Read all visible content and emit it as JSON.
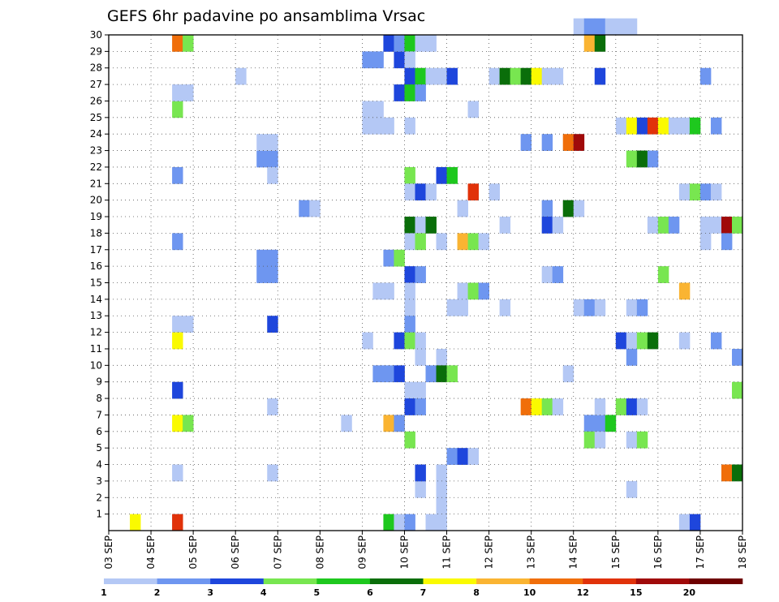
{
  "chart_data": {
    "type": "heatmap",
    "title": "GEFS 6hr padavine po ansamblima Vrsac",
    "x_tick_labels": [
      "03 SEP",
      "04 SEP",
      "05 SEP",
      "06 SEP",
      "07 SEP",
      "08 SEP",
      "09 SEP",
      "10 SEP",
      "11 SEP",
      "12 SEP",
      "13 SEP",
      "14 SEP",
      "15 SEP",
      "16 SEP",
      "17 SEP",
      "18 SEP"
    ],
    "y_tick_labels": [
      "1",
      "2",
      "3",
      "4",
      "5",
      "6",
      "7",
      "8",
      "9",
      "10",
      "11",
      "12",
      "13",
      "14",
      "15",
      "16",
      "17",
      "18",
      "19",
      "20",
      "21",
      "22",
      "23",
      "24",
      "25",
      "26",
      "27",
      "28",
      "29",
      "30"
    ],
    "ylim": [
      0,
      30
    ],
    "grid": true,
    "colorbar": {
      "labels": [
        "1",
        "2",
        "3",
        "4",
        "5",
        "6",
        "7",
        "8",
        "10",
        "12",
        "15",
        "20"
      ],
      "colors": [
        "#b4c8f5",
        "#6e96f0",
        "#1e46dc",
        "#78e650",
        "#1ec81e",
        "#0a6e0a",
        "#fafa00",
        "#fab432",
        "#f06e0a",
        "#e1320a",
        "#a00a0a",
        "#6e0000"
      ]
    },
    "cells": [
      {
        "day": 3.5,
        "member": 0,
        "level": 7
      },
      {
        "day": 4.5,
        "member": 0,
        "level": 1
      },
      {
        "day": 4.5,
        "member": 0,
        "level": 10
      },
      {
        "day": 9.5,
        "member": 0,
        "level": 5
      },
      {
        "day": 9.75,
        "member": 0,
        "level": 1
      },
      {
        "day": 10.0,
        "member": 0,
        "level": 2
      },
      {
        "day": 10.5,
        "member": 0,
        "level": 1
      },
      {
        "day": 10.75,
        "member": 0,
        "level": 1
      },
      {
        "day": 16.5,
        "member": 0,
        "level": 1
      },
      {
        "day": 16.75,
        "member": 0,
        "level": 3
      },
      {
        "day": 10.25,
        "member": 2,
        "level": 1
      },
      {
        "day": 10.25,
        "member": 3,
        "level": 3
      },
      {
        "day": 10.75,
        "member": 1,
        "level": 1
      },
      {
        "day": 10.75,
        "member": 2,
        "level": 1
      },
      {
        "day": 10.75,
        "member": 3,
        "level": 1
      },
      {
        "day": 4.5,
        "member": 3,
        "level": 1
      },
      {
        "day": 4.5,
        "member": 12,
        "level": 1
      },
      {
        "day": 4.75,
        "member": 12,
        "level": 1
      },
      {
        "day": 4.5,
        "member": 6,
        "level": 7
      },
      {
        "day": 4.75,
        "member": 6,
        "level": 4
      },
      {
        "day": 4.5,
        "member": 8,
        "level": 3
      },
      {
        "day": 4.5,
        "member": 11,
        "level": 7
      },
      {
        "day": 4.5,
        "member": 17,
        "level": 2
      },
      {
        "day": 4.5,
        "member": 21,
        "level": 2
      },
      {
        "day": 4.5,
        "member": 25,
        "level": 4
      },
      {
        "day": 4.5,
        "member": 26,
        "level": 1
      },
      {
        "day": 4.75,
        "member": 26,
        "level": 1
      },
      {
        "day": 4.5,
        "member": 29,
        "level": 9
      },
      {
        "day": 4.75,
        "member": 29,
        "level": 4
      },
      {
        "day": 6.0,
        "member": 27,
        "level": 1
      },
      {
        "day": 6.5,
        "member": 16,
        "level": 2
      },
      {
        "day": 6.75,
        "member": 16,
        "level": 2
      },
      {
        "day": 6.5,
        "member": 15,
        "level": 2
      },
      {
        "day": 6.75,
        "member": 15,
        "level": 2
      },
      {
        "day": 6.5,
        "member": 22,
        "level": 2
      },
      {
        "day": 6.75,
        "member": 22,
        "level": 2
      },
      {
        "day": 6.5,
        "member": 23,
        "level": 1
      },
      {
        "day": 6.75,
        "member": 23,
        "level": 1
      },
      {
        "day": 6.75,
        "member": 21,
        "level": 1
      },
      {
        "day": 6.75,
        "member": 12,
        "level": 3
      },
      {
        "day": 6.75,
        "member": 7,
        "level": 1
      },
      {
        "day": 6.75,
        "member": 3,
        "level": 1
      },
      {
        "day": 7.5,
        "member": 19,
        "level": 2
      },
      {
        "day": 7.75,
        "member": 19,
        "level": 1
      },
      {
        "day": 8.5,
        "member": 6,
        "level": 1
      },
      {
        "day": 9.0,
        "member": 28,
        "level": 2
      },
      {
        "day": 9.25,
        "member": 28,
        "level": 2
      },
      {
        "day": 9.0,
        "member": 25,
        "level": 1
      },
      {
        "day": 9.25,
        "member": 25,
        "level": 1
      },
      {
        "day": 9.0,
        "member": 24,
        "level": 1
      },
      {
        "day": 9.25,
        "member": 24,
        "level": 1
      },
      {
        "day": 9.5,
        "member": 24,
        "level": 1
      },
      {
        "day": 9.0,
        "member": 11,
        "level": 1
      },
      {
        "day": 9.25,
        "member": 9,
        "level": 2
      },
      {
        "day": 9.5,
        "member": 9,
        "level": 2
      },
      {
        "day": 9.75,
        "member": 9,
        "level": 3
      },
      {
        "day": 9.25,
        "member": 14,
        "level": 1
      },
      {
        "day": 9.5,
        "member": 14,
        "level": 1
      },
      {
        "day": 9.5,
        "member": 29,
        "level": 3
      },
      {
        "day": 9.75,
        "member": 28,
        "level": 3
      },
      {
        "day": 9.75,
        "member": 6,
        "level": 8
      },
      {
        "day": 9.75,
        "member": 29,
        "level": 2
      },
      {
        "day": 10.0,
        "member": 29,
        "level": 5
      },
      {
        "day": 10.25,
        "member": 29,
        "level": 1
      },
      {
        "day": 10.5,
        "member": 29,
        "level": 1
      },
      {
        "day": 10.0,
        "member": 28,
        "level": 1
      },
      {
        "day": 10.0,
        "member": 27,
        "level": 3
      },
      {
        "day": 10.25,
        "member": 27,
        "level": 5
      },
      {
        "day": 10.5,
        "member": 27,
        "level": 1
      },
      {
        "day": 10.75,
        "member": 27,
        "level": 1
      },
      {
        "day": 11.0,
        "member": 27,
        "level": 3
      },
      {
        "day": 9.75,
        "member": 26,
        "level": 3
      },
      {
        "day": 10.0,
        "member": 26,
        "level": 5
      },
      {
        "day": 10.25,
        "member": 26,
        "level": 2
      },
      {
        "day": 10.0,
        "member": 24,
        "level": 1
      },
      {
        "day": 10.0,
        "member": 21,
        "level": 4
      },
      {
        "day": 10.75,
        "member": 21,
        "level": 3
      },
      {
        "day": 11.0,
        "member": 21,
        "level": 5
      },
      {
        "day": 10.0,
        "member": 20,
        "level": 1
      },
      {
        "day": 10.25,
        "member": 20,
        "level": 3
      },
      {
        "day": 10.5,
        "member": 20,
        "level": 1
      },
      {
        "day": 10.0,
        "member": 18,
        "level": 6
      },
      {
        "day": 10.25,
        "member": 18,
        "level": 1
      },
      {
        "day": 10.5,
        "member": 18,
        "level": 6
      },
      {
        "day": 10.0,
        "member": 17,
        "level": 1
      },
      {
        "day": 10.25,
        "member": 17,
        "level": 4
      },
      {
        "day": 10.75,
        "member": 17,
        "level": 1
      },
      {
        "day": 9.5,
        "member": 16,
        "level": 2
      },
      {
        "day": 9.75,
        "member": 16,
        "level": 4
      },
      {
        "day": 10.0,
        "member": 15,
        "level": 3
      },
      {
        "day": 10.25,
        "member": 15,
        "level": 2
      },
      {
        "day": 10.0,
        "member": 14,
        "level": 1
      },
      {
        "day": 10.0,
        "member": 13,
        "level": 1
      },
      {
        "day": 10.0,
        "member": 12,
        "level": 2
      },
      {
        "day": 9.75,
        "member": 11,
        "level": 3
      },
      {
        "day": 10.0,
        "member": 11,
        "level": 4
      },
      {
        "day": 10.25,
        "member": 11,
        "level": 1
      },
      {
        "day": 10.25,
        "member": 10,
        "level": 1
      },
      {
        "day": 10.75,
        "member": 10,
        "level": 1
      },
      {
        "day": 10.5,
        "member": 9,
        "level": 2
      },
      {
        "day": 10.75,
        "member": 9,
        "level": 6
      },
      {
        "day": 11.0,
        "member": 9,
        "level": 4
      },
      {
        "day": 10.0,
        "member": 8,
        "level": 1
      },
      {
        "day": 10.25,
        "member": 8,
        "level": 1
      },
      {
        "day": 10.0,
        "member": 7,
        "level": 3
      },
      {
        "day": 10.25,
        "member": 7,
        "level": 2
      },
      {
        "day": 9.5,
        "member": 6,
        "level": 8
      },
      {
        "day": 9.75,
        "member": 6,
        "level": 2
      },
      {
        "day": 10.0,
        "member": 5,
        "level": 4
      },
      {
        "day": 11.0,
        "member": 4,
        "level": 2
      },
      {
        "day": 11.25,
        "member": 4,
        "level": 3
      },
      {
        "day": 11.5,
        "member": 4,
        "level": 1
      },
      {
        "day": 11.0,
        "member": 13,
        "level": 1
      },
      {
        "day": 11.25,
        "member": 13,
        "level": 1
      },
      {
        "day": 11.25,
        "member": 14,
        "level": 1
      },
      {
        "day": 11.5,
        "member": 14,
        "level": 4
      },
      {
        "day": 11.75,
        "member": 14,
        "level": 2
      },
      {
        "day": 11.25,
        "member": 17,
        "level": 8
      },
      {
        "day": 11.5,
        "member": 17,
        "level": 4
      },
      {
        "day": 11.75,
        "member": 17,
        "level": 1
      },
      {
        "day": 11.25,
        "member": 19,
        "level": 1
      },
      {
        "day": 11.5,
        "member": 20,
        "level": 10
      },
      {
        "day": 11.5,
        "member": 25,
        "level": 1
      },
      {
        "day": 12.0,
        "member": 20,
        "level": 1
      },
      {
        "day": 12.0,
        "member": 27,
        "level": 1
      },
      {
        "day": 12.25,
        "member": 27,
        "level": 6
      },
      {
        "day": 12.5,
        "member": 27,
        "level": 4
      },
      {
        "day": 12.75,
        "member": 27,
        "level": 6
      },
      {
        "day": 13.0,
        "member": 27,
        "level": 7
      },
      {
        "day": 13.25,
        "member": 27,
        "level": 1
      },
      {
        "day": 13.5,
        "member": 27,
        "level": 1
      },
      {
        "day": 12.25,
        "member": 18,
        "level": 1
      },
      {
        "day": 12.25,
        "member": 13,
        "level": 1
      },
      {
        "day": 12.75,
        "member": 23,
        "level": 2
      },
      {
        "day": 13.25,
        "member": 23,
        "level": 2
      },
      {
        "day": 12.75,
        "member": 7,
        "level": 9
      },
      {
        "day": 13.0,
        "member": 7,
        "level": 7
      },
      {
        "day": 13.25,
        "member": 7,
        "level": 4
      },
      {
        "day": 13.5,
        "member": 7,
        "level": 1
      },
      {
        "day": 13.25,
        "member": 19,
        "level": 2
      },
      {
        "day": 13.25,
        "member": 18,
        "level": 3
      },
      {
        "day": 13.5,
        "member": 18,
        "level": 1
      },
      {
        "day": 13.25,
        "member": 15,
        "level": 1
      },
      {
        "day": 13.5,
        "member": 15,
        "level": 2
      },
      {
        "day": 13.75,
        "member": 9,
        "level": 1
      },
      {
        "day": 13.75,
        "member": 23,
        "level": 9
      },
      {
        "day": 14.0,
        "member": 23,
        "level": 11
      },
      {
        "day": 13.75,
        "member": 19,
        "level": 6
      },
      {
        "day": 14.0,
        "member": 19,
        "level": 1
      },
      {
        "day": 14.0,
        "member": 30,
        "level": 1
      },
      {
        "day": 14.25,
        "member": 30,
        "level": 2
      },
      {
        "day": 14.25,
        "member": 29,
        "level": 8
      },
      {
        "day": 14.5,
        "member": 29,
        "level": 6
      },
      {
        "day": 14.5,
        "member": 30,
        "level": 2
      },
      {
        "day": 14.75,
        "member": 30,
        "level": 1
      },
      {
        "day": 15.0,
        "member": 30,
        "level": 1
      },
      {
        "day": 15.25,
        "member": 30,
        "level": 1
      },
      {
        "day": 14.5,
        "member": 27,
        "level": 3
      },
      {
        "day": 14.0,
        "member": 13,
        "level": 1
      },
      {
        "day": 14.25,
        "member": 13,
        "level": 2
      },
      {
        "day": 14.5,
        "member": 13,
        "level": 1
      },
      {
        "day": 14.25,
        "member": 6,
        "level": 2
      },
      {
        "day": 14.5,
        "member": 6,
        "level": 2
      },
      {
        "day": 14.75,
        "member": 6,
        "level": 5
      },
      {
        "day": 14.25,
        "member": 5,
        "level": 4
      },
      {
        "day": 14.5,
        "member": 5,
        "level": 1
      },
      {
        "day": 14.5,
        "member": 7,
        "level": 1
      },
      {
        "day": 15.0,
        "member": 24,
        "level": 1
      },
      {
        "day": 15.25,
        "member": 24,
        "level": 7
      },
      {
        "day": 15.5,
        "member": 24,
        "level": 3
      },
      {
        "day": 15.75,
        "member": 24,
        "level": 10
      },
      {
        "day": 16.0,
        "member": 24,
        "level": 7
      },
      {
        "day": 16.25,
        "member": 24,
        "level": 1
      },
      {
        "day": 15.0,
        "member": 7,
        "level": 4
      },
      {
        "day": 15.25,
        "member": 7,
        "level": 3
      },
      {
        "day": 15.5,
        "member": 7,
        "level": 1
      },
      {
        "day": 15.0,
        "member": 11,
        "level": 3
      },
      {
        "day": 15.25,
        "member": 11,
        "level": 1
      },
      {
        "day": 15.5,
        "member": 11,
        "level": 4
      },
      {
        "day": 15.75,
        "member": 11,
        "level": 6
      },
      {
        "day": 15.25,
        "member": 10,
        "level": 2
      },
      {
        "day": 15.25,
        "member": 22,
        "level": 4
      },
      {
        "day": 15.5,
        "member": 22,
        "level": 6
      },
      {
        "day": 15.75,
        "member": 22,
        "level": 2
      },
      {
        "day": 15.25,
        "member": 13,
        "level": 1
      },
      {
        "day": 15.5,
        "member": 13,
        "level": 2
      },
      {
        "day": 15.25,
        "member": 5,
        "level": 1
      },
      {
        "day": 15.5,
        "member": 5,
        "level": 4
      },
      {
        "day": 15.25,
        "member": 2,
        "level": 1
      },
      {
        "day": 15.75,
        "member": 18,
        "level": 1
      },
      {
        "day": 16.0,
        "member": 18,
        "level": 4
      },
      {
        "day": 16.25,
        "member": 18,
        "level": 2
      },
      {
        "day": 16.0,
        "member": 15,
        "level": 4
      },
      {
        "day": 16.5,
        "member": 11,
        "level": 1
      },
      {
        "day": 16.5,
        "member": 24,
        "level": 1
      },
      {
        "day": 16.75,
        "member": 24,
        "level": 5
      },
      {
        "day": 17.25,
        "member": 24,
        "level": 2
      },
      {
        "day": 16.5,
        "member": 14,
        "level": 8
      },
      {
        "day": 16.5,
        "member": 20,
        "level": 1
      },
      {
        "day": 16.75,
        "member": 20,
        "level": 4
      },
      {
        "day": 17.0,
        "member": 20,
        "level": 2
      },
      {
        "day": 17.25,
        "member": 20,
        "level": 1
      },
      {
        "day": 17.0,
        "member": 27,
        "level": 2
      },
      {
        "day": 17.0,
        "member": 18,
        "level": 1
      },
      {
        "day": 17.25,
        "member": 18,
        "level": 1
      },
      {
        "day": 17.5,
        "member": 18,
        "level": 11
      },
      {
        "day": 17.75,
        "member": 18,
        "level": 4
      },
      {
        "day": 17.0,
        "member": 17,
        "level": 1
      },
      {
        "day": 17.5,
        "member": 17,
        "level": 2
      },
      {
        "day": 17.25,
        "member": 11,
        "level": 2
      },
      {
        "day": 17.75,
        "member": 10,
        "level": 2
      },
      {
        "day": 17.75,
        "member": 8,
        "level": 4
      },
      {
        "day": 17.5,
        "member": 3,
        "level": 9
      },
      {
        "day": 17.75,
        "member": 3,
        "level": 6
      }
    ]
  }
}
